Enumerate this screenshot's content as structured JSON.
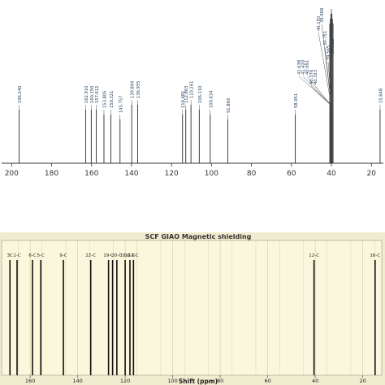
{
  "chart_data": [
    {
      "type": "line",
      "subtype": "nmr-stick-spectrum",
      "title": "",
      "xlabel": "",
      "ylabel": "",
      "xlim": [
        205,
        14
      ],
      "x_reversed": true,
      "x_ticks": [
        200,
        180,
        160,
        140,
        120,
        100,
        80,
        60,
        40,
        20
      ],
      "peaks": [
        {
          "shift": 196.24,
          "label": "196.240",
          "height": 0.55
        },
        {
          "shift": 162.91,
          "label": "162.910",
          "height": 0.55
        },
        {
          "shift": 160.15,
          "label": "160.150",
          "height": 0.55
        },
        {
          "shift": 157.612,
          "label": "157.612",
          "height": 0.55
        },
        {
          "shift": 153.805,
          "label": "153.805",
          "height": 0.5
        },
        {
          "shift": 150.321,
          "label": "150.321",
          "height": 0.5
        },
        {
          "shift": 145.757,
          "label": "145.757",
          "height": 0.45
        },
        {
          "shift": 139.894,
          "label": "139.894",
          "height": 0.6
        },
        {
          "shift": 136.955,
          "label": "136.955",
          "height": 0.6
        },
        {
          "shift": 114.481,
          "label": "114.481",
          "height": 0.5
        },
        {
          "shift": 112.863,
          "label": "112.863",
          "height": 0.55
        },
        {
          "shift": 110.261,
          "label": "110.261",
          "height": 0.6
        },
        {
          "shift": 106.11,
          "label": "106.110",
          "height": 0.55
        },
        {
          "shift": 100.634,
          "label": "100.634",
          "height": 0.5
        },
        {
          "shift": 91.869,
          "label": "91.869",
          "height": 0.45
        },
        {
          "shift": 58.051,
          "label": "58.051",
          "height": 0.5
        },
        {
          "shift": 15.648,
          "label": "15.648",
          "height": 0.55
        }
      ],
      "solvent_multiplet": {
        "center": 40.0,
        "labels": [
          "41.638",
          "41.420",
          "40.991",
          "40.376",
          "40.323",
          "40.150",
          "39.968",
          "39.751",
          "39.565",
          "39.352"
        ]
      },
      "color": "#2a2a2a"
    },
    {
      "type": "line",
      "subtype": "stick-spectrum",
      "title": "SCF GIAO Magnetic shielding",
      "xlabel": "Shift (ppm)",
      "ylabel": "",
      "xlim": [
        172,
        12
      ],
      "x_reversed": true,
      "x_ticks": [
        160,
        140,
        120,
        100,
        80,
        60,
        40,
        20
      ],
      "background": "#fbf7dc",
      "peaks": [
        {
          "shift": 168.5,
          "label": "3C"
        },
        {
          "shift": 165.5,
          "label": "1-C"
        },
        {
          "shift": 159.0,
          "label": "6-C"
        },
        {
          "shift": 155.5,
          "label": "5-C"
        },
        {
          "shift": 146.0,
          "label": "9-C"
        },
        {
          "shift": 134.5,
          "label": "22-C"
        },
        {
          "shift": 127.0,
          "label": "19-C"
        },
        {
          "shift": 125.3,
          "label": ""
        },
        {
          "shift": 123.5,
          "label": "20-C"
        },
        {
          "shift": 120.0,
          "label": "18-C"
        },
        {
          "shift": 118.0,
          "label": "12-C"
        },
        {
          "shift": 116.5,
          "label": "13-C"
        },
        {
          "shift": 40.5,
          "label": "12-C"
        },
        {
          "shift": 14.8,
          "label": "16-C"
        }
      ]
    }
  ]
}
